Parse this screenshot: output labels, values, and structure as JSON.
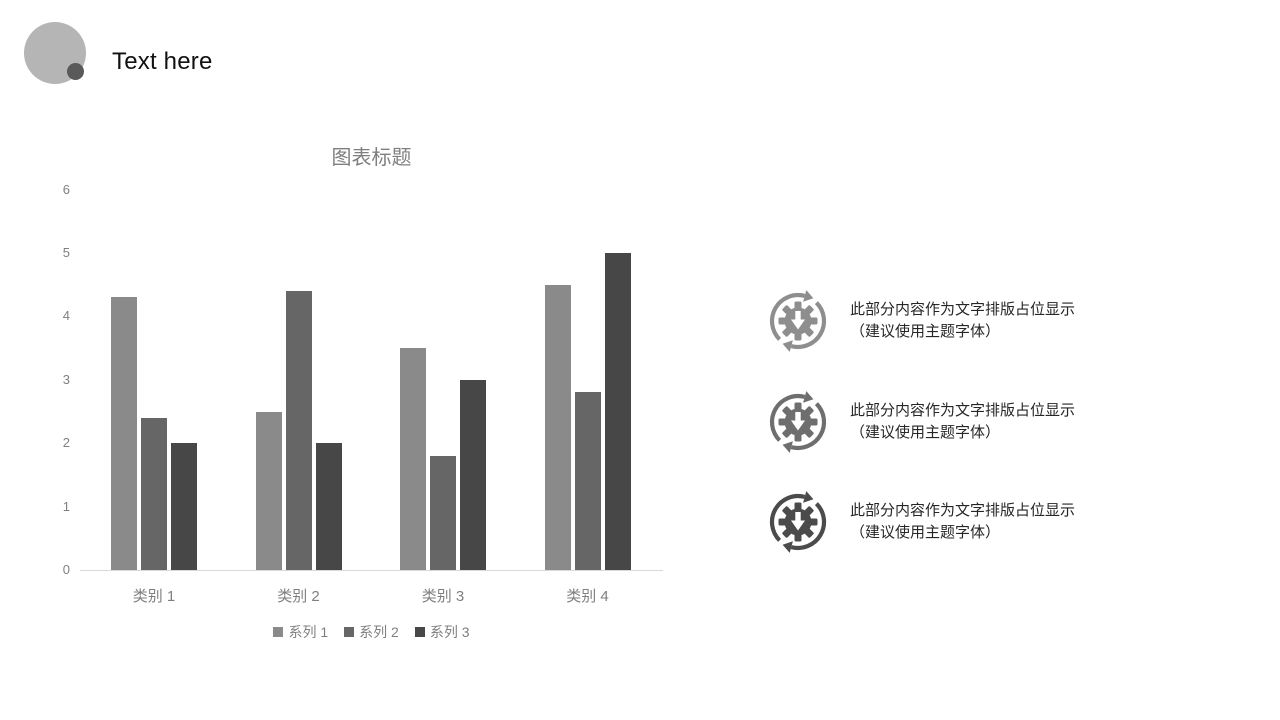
{
  "header": {
    "title": "Text here",
    "logo_circle_color": "#b5b5b5",
    "logo_dot_color": "#595959",
    "title_color": "#111111"
  },
  "chart_data": {
    "type": "bar",
    "title": "图表标题",
    "categories": [
      "类别 1",
      "类别 2",
      "类别 3",
      "类别 4"
    ],
    "series": [
      {
        "name": "系列 1",
        "color": "#8a8a8a",
        "values": [
          4.3,
          2.5,
          3.5,
          4.5
        ]
      },
      {
        "name": "系列 2",
        "color": "#666666",
        "values": [
          2.4,
          4.4,
          1.8,
          2.8
        ]
      },
      {
        "name": "系列 3",
        "color": "#474747",
        "values": [
          2.0,
          2.0,
          3.0,
          5.0
        ]
      }
    ],
    "xlabel": "",
    "ylabel": "",
    "ylim": [
      0,
      6
    ],
    "yticks": [
      0,
      1,
      2,
      3,
      4,
      5,
      6
    ],
    "grid": false,
    "legend_position": "bottom",
    "axis_line_color": "#d9d9d9",
    "label_color": "#7f7f7f",
    "title_color": "#7f7f7f"
  },
  "callouts": {
    "text_color": "#262626",
    "items": [
      {
        "icon": "sync-gear-download-icon",
        "icon_color": "#8e8e8e",
        "line1": "此部分内容作为文字排版占位显示",
        "line2": "（建议使用主题字体）"
      },
      {
        "icon": "sync-gear-download-icon",
        "icon_color": "#6e6e6e",
        "line1": "此部分内容作为文字排版占位显示",
        "line2": "（建议使用主题字体）"
      },
      {
        "icon": "sync-gear-download-icon",
        "icon_color": "#4b4b4b",
        "line1": "此部分内容作为文字排版占位显示",
        "line2": "（建议使用主题字体）"
      }
    ]
  }
}
